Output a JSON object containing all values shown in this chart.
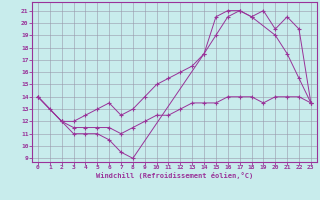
{
  "xlabel": "Windchill (Refroidissement éolien,°C)",
  "bg_color": "#c8ecec",
  "line_color": "#993399",
  "grid_color": "#9999aa",
  "xlim": [
    -0.5,
    23.5
  ],
  "ylim": [
    8.7,
    21.7
  ],
  "yticks": [
    9,
    10,
    11,
    12,
    13,
    14,
    15,
    16,
    17,
    18,
    19,
    20,
    21
  ],
  "xticks": [
    0,
    1,
    2,
    3,
    4,
    5,
    6,
    7,
    8,
    9,
    10,
    11,
    12,
    13,
    14,
    15,
    16,
    17,
    18,
    19,
    20,
    21,
    22,
    23
  ],
  "line1_x": [
    0,
    1,
    2,
    3,
    4,
    5,
    6,
    7,
    8,
    14,
    15,
    16,
    17,
    18,
    20,
    21,
    22,
    23
  ],
  "line1_y": [
    14.0,
    13.0,
    12.0,
    11.0,
    11.0,
    11.0,
    10.5,
    9.5,
    9.0,
    17.5,
    20.5,
    21.0,
    21.0,
    20.5,
    19.0,
    17.5,
    15.5,
    13.5
  ],
  "line2_x": [
    0,
    2,
    3,
    4,
    5,
    6,
    7,
    8,
    9,
    10,
    11,
    12,
    13,
    14,
    15,
    16,
    17,
    18,
    19,
    20,
    21,
    22,
    23
  ],
  "line2_y": [
    14.0,
    12.0,
    12.0,
    12.5,
    13.0,
    13.5,
    12.5,
    13.0,
    14.0,
    15.0,
    15.5,
    16.0,
    16.5,
    17.5,
    19.0,
    20.5,
    21.0,
    20.5,
    21.0,
    19.5,
    20.5,
    19.5,
    13.5
  ],
  "line3_x": [
    0,
    2,
    3,
    4,
    5,
    6,
    7,
    8,
    9,
    10,
    11,
    12,
    13,
    14,
    15,
    16,
    17,
    18,
    19,
    20,
    21,
    22,
    23
  ],
  "line3_y": [
    14.0,
    12.0,
    11.5,
    11.5,
    11.5,
    11.5,
    11.0,
    11.5,
    12.0,
    12.5,
    12.5,
    13.0,
    13.5,
    13.5,
    13.5,
    14.0,
    14.0,
    14.0,
    13.5,
    14.0,
    14.0,
    14.0,
    13.5
  ]
}
